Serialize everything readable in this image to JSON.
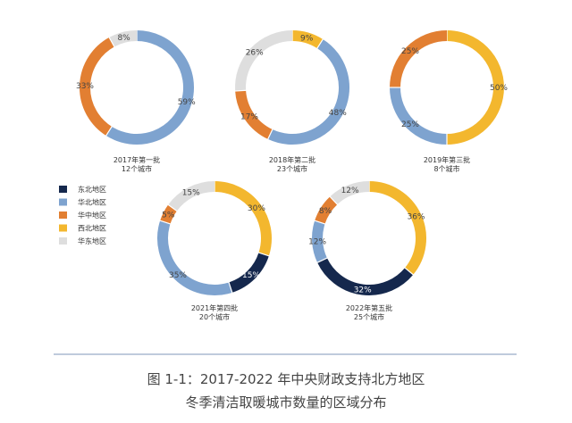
{
  "legend": [
    {
      "label": "东北地区",
      "color": "#15284d"
    },
    {
      "label": "华北地区",
      "color": "#7ea3cf"
    },
    {
      "label": "华中地区",
      "color": "#e27f32"
    },
    {
      "label": "西北地区",
      "color": "#f3b72e"
    },
    {
      "label": "华东地区",
      "color": "#dedede"
    }
  ],
  "caption": {
    "line1": "图 1-1：2017-2022 年中央财政支持北方地区",
    "line2": "冬季清洁取暖城市数量的区域分布"
  },
  "chart_data": [
    {
      "type": "pie",
      "title": "2017年第一批",
      "subtitle": "12个城市",
      "slices": [
        {
          "region": "华北地区",
          "value": 59,
          "label": "59%"
        },
        {
          "region": "华中地区",
          "value": 33,
          "label": "33%"
        },
        {
          "region": "华东地区",
          "value": 8,
          "label": "8%"
        }
      ]
    },
    {
      "type": "pie",
      "title": "2018年第二批",
      "subtitle": "23个城市",
      "slices": [
        {
          "region": "西北地区",
          "value": 9,
          "label": "9%"
        },
        {
          "region": "华北地区",
          "value": 48,
          "label": "48%"
        },
        {
          "region": "华中地区",
          "value": 17,
          "label": "17%"
        },
        {
          "region": "华东地区",
          "value": 26,
          "label": "26%"
        }
      ]
    },
    {
      "type": "pie",
      "title": "2019年第三批",
      "subtitle": "8个城市",
      "slices": [
        {
          "region": "西北地区",
          "value": 50,
          "label": "50%"
        },
        {
          "region": "华北地区",
          "value": 25,
          "label": "25%"
        },
        {
          "region": "华中地区",
          "value": 25,
          "label": "25%"
        }
      ]
    },
    {
      "type": "pie",
      "title": "2021年第四批",
      "subtitle": "20个城市",
      "slices": [
        {
          "region": "西北地区",
          "value": 30,
          "label": "30%"
        },
        {
          "region": "东北地区",
          "value": 15,
          "label": "15%"
        },
        {
          "region": "华北地区",
          "value": 35,
          "label": "35%"
        },
        {
          "region": "华中地区",
          "value": 5,
          "label": "5%"
        },
        {
          "region": "华东地区",
          "value": 15,
          "label": "15%"
        }
      ]
    },
    {
      "type": "pie",
      "title": "2022年第五批",
      "subtitle": "25个城市",
      "slices": [
        {
          "region": "西北地区",
          "value": 36,
          "label": "36%"
        },
        {
          "region": "东北地区",
          "value": 32,
          "label": "32%"
        },
        {
          "region": "华北地区",
          "value": 12,
          "label": "12%"
        },
        {
          "region": "华中地区",
          "value": 8,
          "label": "8%"
        },
        {
          "region": "华东地区",
          "value": 12,
          "label": "12%"
        }
      ]
    }
  ]
}
